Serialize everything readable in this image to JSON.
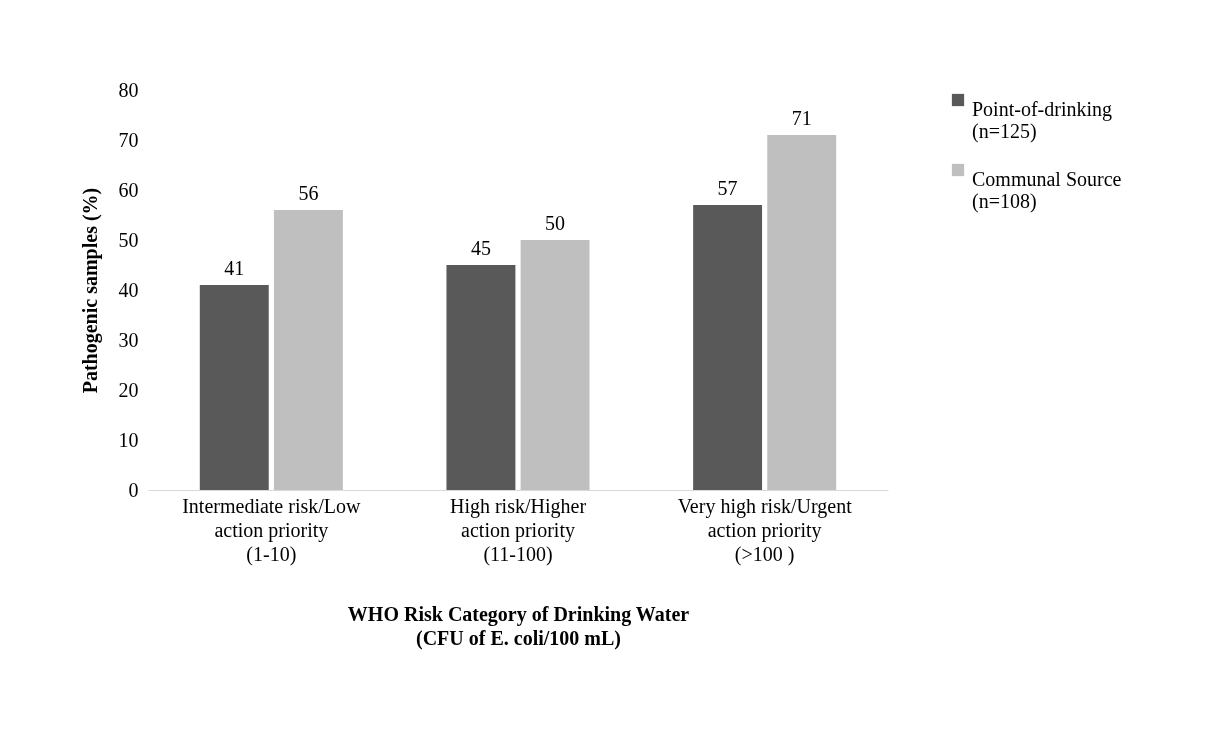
{
  "chart_data": {
    "type": "bar",
    "xlabel": "WHO Risk Category of Drinking Water\n(CFU of E. coli/100 mL)",
    "ylabel": "Pathogenic samples (%)",
    "categories": [
      "Intermediate risk/Low\naction priority\n(1-10)",
      "High risk/Higher\naction priority\n(11-100)",
      "Very high risk/Urgent\naction priority\n(>100 )"
    ],
    "series": [
      {
        "name": "Point-of-drinking\n(n=125)",
        "color": "#595959",
        "values": [
          41,
          45,
          57
        ]
      },
      {
        "name": "Communal Source\n(n=108)",
        "color": "#bfbfbf",
        "values": [
          56,
          50,
          71
        ]
      }
    ],
    "ylim": [
      0,
      80
    ],
    "yticks": [
      0,
      10,
      20,
      30,
      40,
      50,
      60,
      70,
      80
    ],
    "grid": false,
    "legend": "top right",
    "data_labels": true
  }
}
